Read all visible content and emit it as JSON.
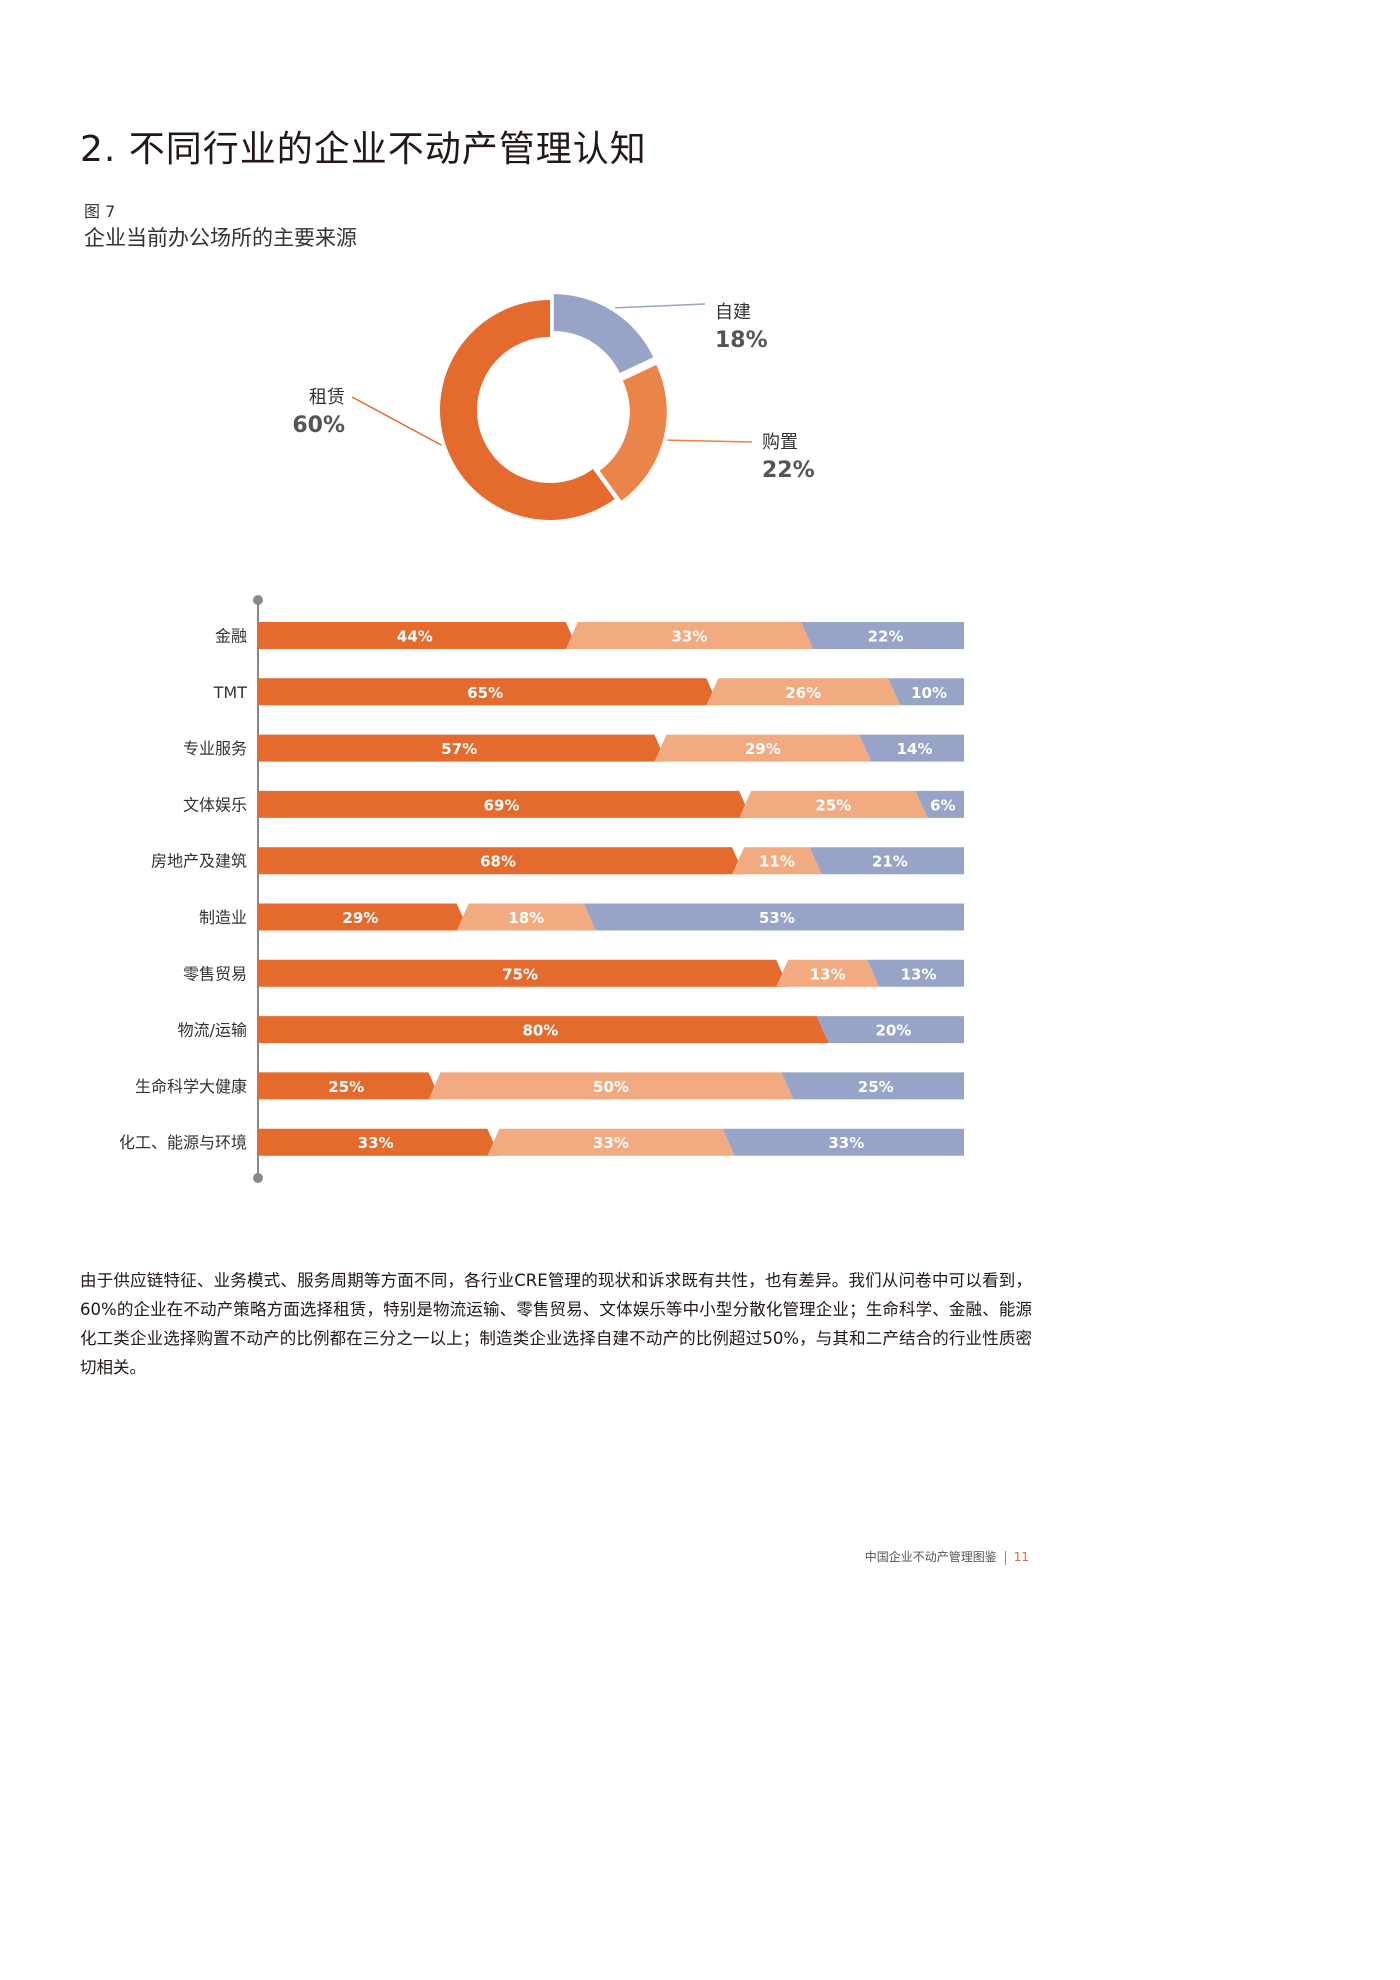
{
  "page": {
    "title": "2. 不同行业的企业不动产管理认知",
    "figure_no": "图 7",
    "figure_title": "企业当前办公场所的主要来源",
    "paragraph": "由于供应链特征、业务模式、服务周期等方面不同，各行业CRE管理的现状和诉求既有共性，也有差异。我们从问卷中可以看到，60%的企业在不动产策略方面选择租赁，特别是物流运输、零售贸易、文体娱乐等中小型分散化管理企业；生命科学、金融、能源化工类企业选择购置不动产的比例都在三分之一以上；制造类企业选择自建不动产的比例超过50%，与其和二产结合的行业性质密切相关。",
    "footer_text": "中国企业不动产管理图鉴",
    "page_number": "11"
  },
  "colors": {
    "rent": "#e46a2e",
    "buy": "#f2aa80",
    "buy_donut": "#eb8449",
    "self": "#98a4c7",
    "text": "#231815",
    "axis": "#888888"
  },
  "chart_data": [
    {
      "type": "pie",
      "title": "企业当前办公场所的主要来源",
      "slices": [
        {
          "label": "自建",
          "value": 18,
          "value_label": "18%",
          "color": "#98a4c7"
        },
        {
          "label": "购置",
          "value": 22,
          "value_label": "22%",
          "color": "#eb8449"
        },
        {
          "label": "租赁",
          "value": 60,
          "value_label": "60%",
          "color": "#e46a2e"
        }
      ]
    },
    {
      "type": "bar",
      "stacked": true,
      "orientation": "horizontal",
      "categories": [
        "金融",
        "TMT",
        "专业服务",
        "文体娱乐",
        "房地产及建筑",
        "制造业",
        "零售贸易",
        "物流/运输",
        "生命科学大健康",
        "化工、能源与环境"
      ],
      "series": [
        {
          "name": "租赁",
          "color": "#e46a2e",
          "values": [
            44,
            65,
            57,
            69,
            68,
            29,
            75,
            80,
            25,
            33
          ],
          "labels": [
            "44%",
            "65%",
            "57%",
            "69%",
            "68%",
            "29%",
            "75%",
            "80%",
            "25%",
            "33%"
          ]
        },
        {
          "name": "购置",
          "color": "#f2aa80",
          "values": [
            33,
            26,
            29,
            25,
            11,
            18,
            13,
            0,
            50,
            33
          ],
          "labels": [
            "33%",
            "26%",
            "29%",
            "25%",
            "11%",
            "18%",
            "13%",
            "",
            "50%",
            "33%"
          ]
        },
        {
          "name": "自建",
          "color": "#98a4c7",
          "values": [
            22,
            10,
            14,
            6,
            21,
            53,
            13,
            20,
            25,
            33
          ],
          "labels": [
            "22%",
            "10%",
            "14%",
            "6%",
            "21%",
            "53%",
            "13%",
            "20%",
            "25%",
            "33%"
          ]
        }
      ]
    }
  ]
}
